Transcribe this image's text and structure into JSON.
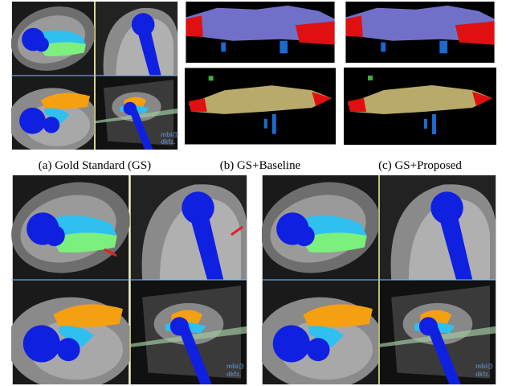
{
  "captions": {
    "a": "(a) Gold Standard (GS)",
    "b": "(b) GS+Baseline",
    "c": "(c) GS+Proposed"
  },
  "watermark": {
    "line1": "mbi@",
    "line2": "dkfz."
  }
}
